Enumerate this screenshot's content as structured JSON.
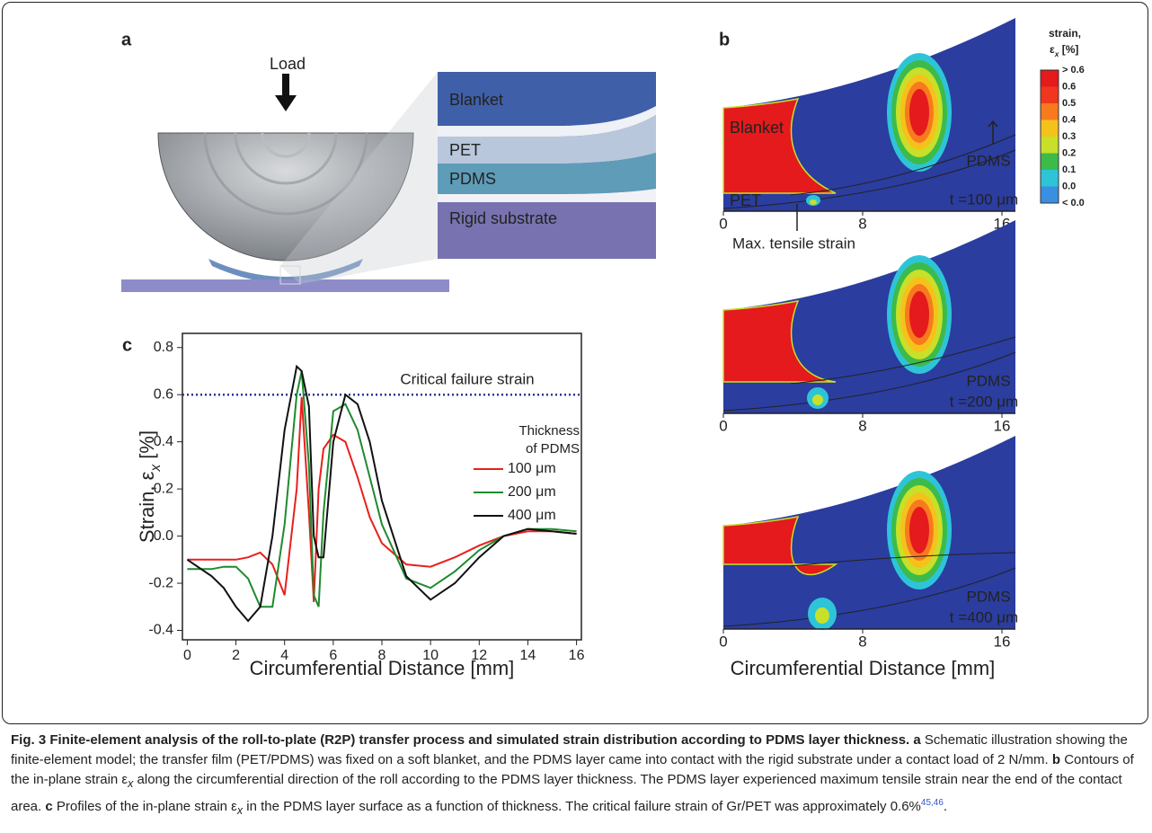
{
  "panel_a": {
    "label": "a",
    "load": "Load",
    "layers": [
      "Blanket",
      "PET",
      "PDMS",
      "Rigid substrate"
    ]
  },
  "panel_b": {
    "label": "b",
    "colorbar": {
      "title": "strain,",
      "unit": [
        "ε",
        "x",
        " [%]"
      ],
      "labels": [
        "> 0.6",
        "0.6",
        "0.5",
        "0.4",
        "0.3",
        "0.2",
        "0.1",
        "0.0",
        "< 0.0"
      ],
      "colors": [
        "#e41a1c",
        "#f0361e",
        "#f77a1f",
        "#f5c21c",
        "#c8e02a",
        "#3dbb4a",
        "#2ec4d8",
        "#3b8fe0",
        "#2b3d9e"
      ]
    },
    "plots": [
      {
        "layer_labels": [
          "Blanket",
          "PET"
        ],
        "pdms": "PDMS",
        "thickness": "t =100 μm",
        "annotation": "Max. tensile strain",
        "xticks": [
          0,
          8,
          16
        ]
      },
      {
        "pdms": "PDMS",
        "thickness": "t =200 μm",
        "xticks": [
          0,
          8,
          16
        ]
      },
      {
        "pdms": "PDMS",
        "thickness": "t =400 μm",
        "xticks": [
          0,
          8,
          16
        ]
      }
    ],
    "xlabel": "Circumferential Distance [mm]"
  },
  "chart_data": {
    "type": "line",
    "label": "c",
    "xlabel": "Circumferential Distance [mm]",
    "ylabel": [
      "Strain, ε",
      "x",
      " [%]"
    ],
    "x": [
      0,
      1,
      1.5,
      2,
      2.5,
      3,
      3.5,
      4,
      4.5,
      4.7,
      5,
      5.2,
      5.4,
      5.6,
      6,
      6.5,
      7,
      7.5,
      8,
      9,
      10,
      11,
      12,
      13,
      14,
      15,
      16
    ],
    "series": [
      {
        "name": "100 μm",
        "color": "#e8201c",
        "values": [
          -0.1,
          -0.1,
          -0.1,
          -0.1,
          -0.09,
          -0.07,
          -0.12,
          -0.25,
          0.2,
          0.59,
          0.1,
          -0.28,
          0.2,
          0.37,
          0.43,
          0.4,
          0.25,
          0.08,
          -0.03,
          -0.12,
          -0.13,
          -0.09,
          -0.04,
          0.0,
          0.02,
          0.02,
          0.01
        ]
      },
      {
        "name": "200 μm",
        "color": "#1f8a2e",
        "values": [
          -0.14,
          -0.14,
          -0.13,
          -0.13,
          -0.18,
          -0.3,
          -0.3,
          0.05,
          0.6,
          0.7,
          0.3,
          -0.25,
          -0.3,
          0.1,
          0.53,
          0.56,
          0.45,
          0.25,
          0.05,
          -0.18,
          -0.22,
          -0.15,
          -0.06,
          0.0,
          0.03,
          0.03,
          0.02
        ]
      },
      {
        "name": "400 μm",
        "color": "#111111",
        "values": [
          -0.1,
          -0.17,
          -0.22,
          -0.3,
          -0.36,
          -0.3,
          0.0,
          0.45,
          0.72,
          0.7,
          0.55,
          0.0,
          -0.09,
          -0.09,
          0.4,
          0.6,
          0.56,
          0.4,
          0.15,
          -0.17,
          -0.27,
          -0.2,
          -0.09,
          0.0,
          0.03,
          0.02,
          0.01
        ]
      }
    ],
    "legend_title": [
      "Thickness",
      "of PDMS"
    ],
    "reference_line": {
      "value": 0.6,
      "label": "Critical failure strain",
      "color": "#2b3a8f"
    },
    "xlim": [
      -0.2,
      16.2
    ],
    "ylim": [
      -0.44,
      0.86
    ],
    "xticks": [
      0,
      2,
      4,
      6,
      8,
      10,
      12,
      14,
      16
    ],
    "yticks": [
      -0.4,
      -0.2,
      {
        "value": 0,
        "label": "0.0"
      },
      0.2,
      0.4,
      0.6,
      0.8
    ]
  },
  "caption": {
    "title": "Fig. 3 Finite-element analysis of the roll-to-plate (R2P) transfer process and simulated strain distribution according to PDMS layer thickness.",
    "parts": [
      {
        "label": "a",
        "text": [
          "Schematic illustration showing the finite-element model; the transfer film (PET/PDMS) was fixed on a soft blanket, and the PDMS layer came into contact with the rigid substrate under a contact load of 2 N/mm."
        ]
      },
      {
        "label": "b",
        "text": [
          "Contours of the in-plane strain ε",
          "x",
          "along the circumferential direction of the roll according to the PDMS layer thickness. The PDMS layer experienced maximum tensile strain near the end of the contact area."
        ]
      },
      {
        "label": "c",
        "text": [
          "Profiles of the in-plane strain ε",
          "x",
          "in the PDMS layer surface as a function of thickness. The critical failure strain of Gr/PET was approximately 0.6%"
        ]
      }
    ],
    "citation": "45,46",
    "end": "."
  }
}
